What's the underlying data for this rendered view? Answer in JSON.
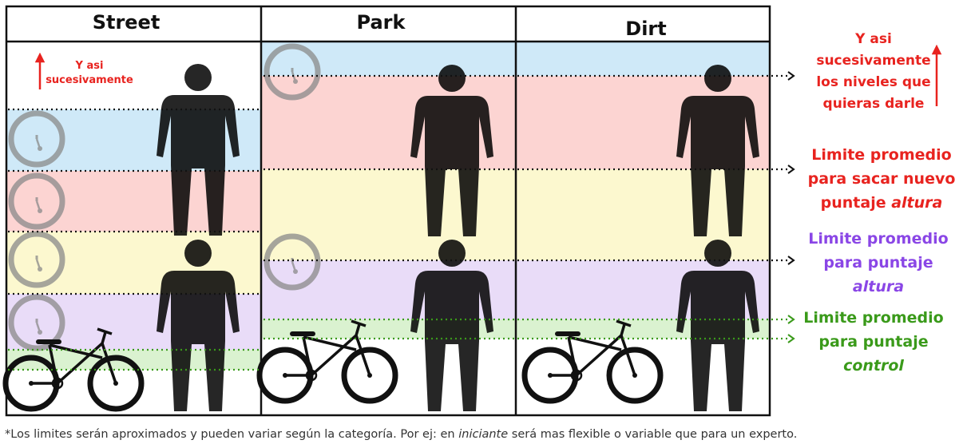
{
  "columns": [
    {
      "title": "Street"
    },
    {
      "title": "Park"
    },
    {
      "title": "Dirt"
    }
  ],
  "street_note": {
    "line1": "Y asi",
    "line2": "sucesivamente"
  },
  "legend": {
    "more_levels": {
      "line1": "Y asi",
      "line2": "sucesivamente",
      "line3": "los niveles que",
      "line4": "quieras darle",
      "color": "#e8231f"
    },
    "new_height_limit": {
      "line1": "Limite promedio",
      "line2": "para sacar nuevo",
      "line3_plain": "puntaje ",
      "line3_italic": "altura",
      "color": "#e8231f"
    },
    "height_limit": {
      "line1": "Limite promedio",
      "line2": "para puntaje",
      "line3_italic": "altura",
      "color": "#8a46e6"
    },
    "control_limit": {
      "line1": "Limite promedio",
      "line2": "para puntaje",
      "line3_italic": "control",
      "color": "#3a9a1a"
    }
  },
  "band_colors": {
    "blue": "#cfe9f8",
    "red": "#fcd4d2",
    "yellow": "#fcf8cf",
    "purple": "#e9dcf8",
    "green": "#daf2d0"
  },
  "footnote": {
    "before": "*Los limites serán aproximados y pueden variar según la categoría. Por ej: en ",
    "italic": "iniciante",
    "after": " será mas flexible o variable que para un experto."
  }
}
